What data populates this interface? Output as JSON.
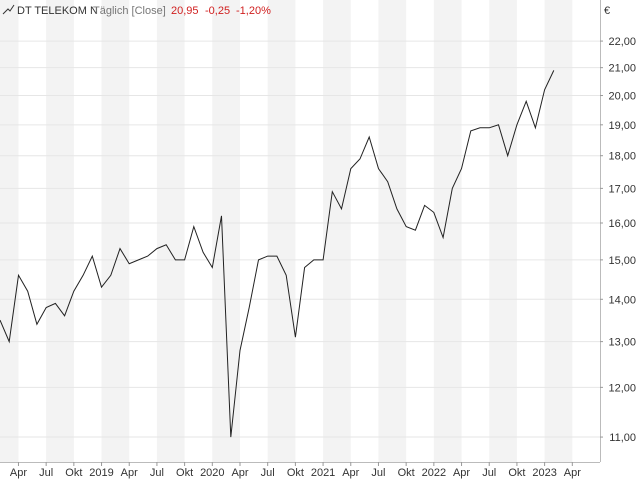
{
  "chart_data": {
    "type": "line",
    "title": "DT TELEKOM N",
    "subtitle": "Täglich [Close]",
    "quote": {
      "last": "20,95",
      "change": "-0,25",
      "change_pct": "-1,20%"
    },
    "y_unit": "€",
    "log_scale": true,
    "grid": true,
    "xlim": [
      "2018-02",
      "2023-07"
    ],
    "ylim": [
      10.53,
      23.64
    ],
    "yticks": [
      {
        "value": 11,
        "label": "11,00"
      },
      {
        "value": 12,
        "label": "12,00"
      },
      {
        "value": 13,
        "label": "13,00"
      },
      {
        "value": 14,
        "label": "14,00"
      },
      {
        "value": 15,
        "label": "15,00"
      },
      {
        "value": 16,
        "label": "16,00"
      },
      {
        "value": 17,
        "label": "17,00"
      },
      {
        "value": 18,
        "label": "18,00"
      },
      {
        "value": 19,
        "label": "19,00"
      },
      {
        "value": 20,
        "label": "20,00"
      },
      {
        "value": 21,
        "label": "21,00"
      },
      {
        "value": 22,
        "label": "22,00"
      }
    ],
    "xticks": [
      {
        "value": "2018-04",
        "label": "Apr"
      },
      {
        "value": "2018-07",
        "label": "Jul"
      },
      {
        "value": "2018-10",
        "label": "Okt"
      },
      {
        "value": "2019-01",
        "label": "2019"
      },
      {
        "value": "2019-04",
        "label": "Apr"
      },
      {
        "value": "2019-07",
        "label": "Jul"
      },
      {
        "value": "2019-10",
        "label": "Okt"
      },
      {
        "value": "2020-01",
        "label": "2020"
      },
      {
        "value": "2020-04",
        "label": "Apr"
      },
      {
        "value": "2020-07",
        "label": "Jul"
      },
      {
        "value": "2020-10",
        "label": "Okt"
      },
      {
        "value": "2021-01",
        "label": "2021"
      },
      {
        "value": "2021-04",
        "label": "Apr"
      },
      {
        "value": "2021-07",
        "label": "Jul"
      },
      {
        "value": "2021-10",
        "label": "Okt"
      },
      {
        "value": "2022-01",
        "label": "2022"
      },
      {
        "value": "2022-04",
        "label": "Apr"
      },
      {
        "value": "2022-07",
        "label": "Jul"
      },
      {
        "value": "2022-10",
        "label": "Okt"
      },
      {
        "value": "2023-01",
        "label": "2023"
      },
      {
        "value": "2023-04",
        "label": "Apr"
      }
    ],
    "x": [
      "2018-02",
      "2018-03",
      "2018-04",
      "2018-05",
      "2018-06",
      "2018-07",
      "2018-08",
      "2018-09",
      "2018-10",
      "2018-11",
      "2018-12",
      "2019-01",
      "2019-02",
      "2019-03",
      "2019-04",
      "2019-05",
      "2019-06",
      "2019-07",
      "2019-08",
      "2019-09",
      "2019-10",
      "2019-11",
      "2019-12",
      "2020-01",
      "2020-02",
      "2020-03",
      "2020-04",
      "2020-05",
      "2020-06",
      "2020-07",
      "2020-08",
      "2020-09",
      "2020-10",
      "2020-11",
      "2020-12",
      "2021-01",
      "2021-02",
      "2021-03",
      "2021-04",
      "2021-05",
      "2021-06",
      "2021-07",
      "2021-08",
      "2021-09",
      "2021-10",
      "2021-11",
      "2021-12",
      "2022-01",
      "2022-02",
      "2022-03",
      "2022-04",
      "2022-05",
      "2022-06",
      "2022-07",
      "2022-08",
      "2022-09",
      "2022-10",
      "2022-11",
      "2022-12",
      "2023-01",
      "2023-02"
    ],
    "series": [
      {
        "color": "#222222",
        "values": [
          13.5,
          13.0,
          14.6,
          14.2,
          13.4,
          13.8,
          13.9,
          13.6,
          14.2,
          14.6,
          15.1,
          14.3,
          14.6,
          15.3,
          14.9,
          15.0,
          15.1,
          15.3,
          15.4,
          15.0,
          15.0,
          15.9,
          15.2,
          14.8,
          16.2,
          11.0,
          12.8,
          13.8,
          15.0,
          15.1,
          15.1,
          14.6,
          13.1,
          14.8,
          15.0,
          15.0,
          16.9,
          16.4,
          17.6,
          17.9,
          18.6,
          17.6,
          17.2,
          16.4,
          15.9,
          15.8,
          16.5,
          16.3,
          15.6,
          17.0,
          17.6,
          18.8,
          18.9,
          18.9,
          19.0,
          18.0,
          19.0,
          19.8,
          18.9,
          20.2,
          20.9
        ]
      }
    ]
  }
}
